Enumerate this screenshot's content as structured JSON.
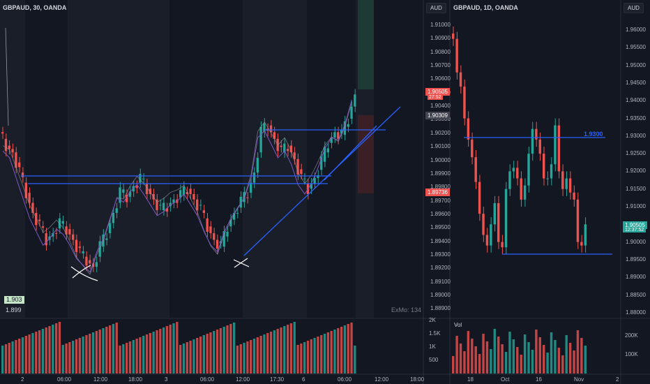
{
  "colors": {
    "bg": "#131722",
    "bg_alt": "#1a1e29",
    "up": "#26a69a",
    "down": "#ef5350",
    "line_blue": "#2962ff",
    "ma_white": "#9598a1",
    "ma_purple": "#7e57c2",
    "grid": "#2a2e39"
  },
  "left_chart": {
    "symbol": "GBPAUD, 30, OANDA",
    "currency_button": "AUD",
    "badge_value": "1.903",
    "badge_value2": "1.899",
    "watermark": "ExMo: 134",
    "price_ticks": [
      "1.91000",
      "1.90900",
      "1.90800",
      "1.90700",
      "1.90600",
      "1.90500",
      "1.90400",
      "1.90300",
      "1.90200",
      "1.90100",
      "1.90000",
      "1.89900",
      "1.89800",
      "1.89700",
      "1.89600",
      "1.89500",
      "1.89400",
      "1.89300",
      "1.89200",
      "1.89100",
      "1.89000",
      "1.88900"
    ],
    "price_tags": [
      {
        "value": "1.90505",
        "sub": "27:52",
        "color": "#ef5350"
      },
      {
        "value": "1.90309",
        "color": "#434651"
      },
      {
        "value": "1.89736",
        "color": "#ef5350"
      }
    ],
    "time_ticks": [
      "2",
      "06:00",
      "12:00",
      "18:00",
      "3",
      "06:00",
      "12:00",
      "17:30",
      "6",
      "06:00",
      "12:00",
      "18:00"
    ],
    "vol_ticks": [
      "2K",
      "1.5K",
      "1K",
      "500"
    ]
  },
  "right_chart": {
    "symbol": "GBPAUD, 1D, OANDA",
    "currency_button": "AUD",
    "level_label": "1.9300",
    "volume_label": "Vol",
    "price_ticks": [
      "1.96000",
      "1.95500",
      "1.95000",
      "1.94500",
      "1.94000",
      "1.93500",
      "1.93000",
      "1.92500",
      "1.92000",
      "1.91500",
      "1.91000",
      "1.90500",
      "1.90000",
      "1.89500",
      "1.89000",
      "1.88500",
      "1.88000"
    ],
    "price_tag": {
      "value": "1.90505",
      "sub": "12:37:52",
      "color": "#26a69a"
    },
    "time_ticks": [
      "18",
      "Oct",
      "16",
      "Nov",
      "2"
    ],
    "vol_ticks": [
      "200K",
      "100K"
    ]
  }
}
